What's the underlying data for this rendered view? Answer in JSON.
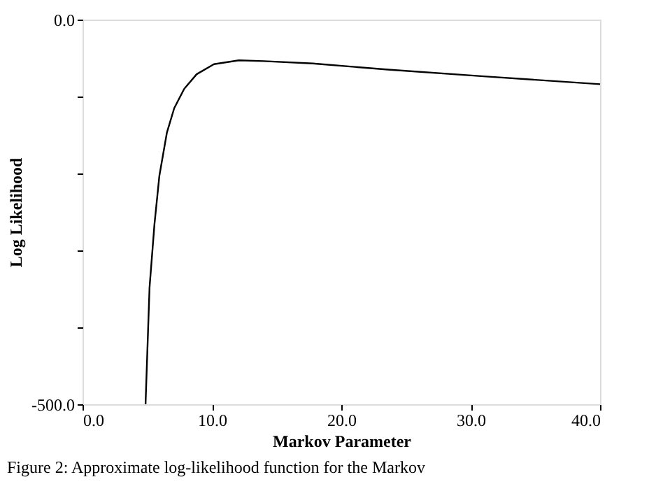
{
  "chart_data": {
    "type": "line",
    "xlabel": "Markov Parameter",
    "ylabel": "Log Likelihood",
    "annotations": [
      "Figure 2:   Approximate log-likelihood function for the Markov"
    ],
    "x": [
      4.87,
      5.18,
      5.56,
      5.94,
      6.52,
      7.09,
      7.86,
      8.82,
      10.16,
      12.08,
      14.0,
      17.8,
      23.6,
      31.2,
      40.0
    ],
    "series": [
      {
        "color": "#000000",
        "values": [
          -500,
          -348,
          -266,
          -203,
          -147,
          -115,
          -90,
          -71,
          -58,
          -53,
          -54,
          -57,
          -65,
          -74,
          -84
        ]
      }
    ],
    "xlim": [
      0,
      40
    ],
    "ylim": [
      -500,
      0
    ],
    "xticks": [
      {
        "value": 0,
        "label": "0.0"
      },
      {
        "value": 10,
        "label": "10.0"
      },
      {
        "value": 20,
        "label": "20.0"
      },
      {
        "value": 30,
        "label": "30.0"
      },
      {
        "value": 40,
        "label": "40.0"
      }
    ],
    "yticks": [
      {
        "value": -500,
        "label": "-500.0"
      },
      {
        "value": -400,
        "label": null
      },
      {
        "value": -300,
        "label": null
      },
      {
        "value": -200,
        "label": null
      },
      {
        "value": -100,
        "label": null
      },
      {
        "value": 0,
        "label": "0.0"
      }
    ],
    "grid": false,
    "marker": "none",
    "line_style": "solid"
  }
}
